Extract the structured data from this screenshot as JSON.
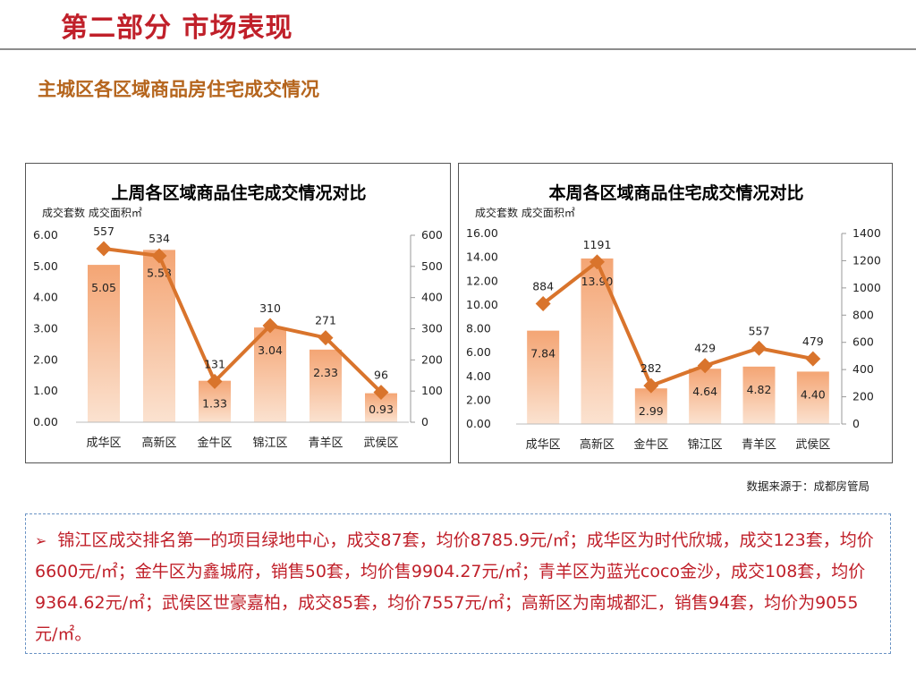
{
  "header": {
    "title": "第二部分 市场表现"
  },
  "subtitle": "主城区各区域商品房住宅成交情况",
  "source_note": "数据来源于：成都房管局",
  "summary": {
    "bullet": "➢",
    "text": "锦江区成交排名第一的项目绿地中心，成交87套，均价8785.9元/㎡；成华区为时代欣城，成交123套，均价6600元/㎡；金牛区为鑫城府，销售50套，均价售9904.27元/㎡；青羊区为蓝光coco金沙，成交108套，均价9364.62元/㎡；武侯区世豪嘉柏，成交85套，均价7557元/㎡；高新区为南城都汇，销售94套，均价为9055元/㎡。"
  },
  "colors": {
    "bar_fill_top": "#f4a574",
    "bar_fill_bottom": "#fbe2d0",
    "line": "#d9742c",
    "title_red": "#c0202a",
    "subtitle_brown": "#b5651d"
  },
  "chart_data": [
    {
      "type": "bar+line",
      "title": "上周各区域商品住宅成交情况对比",
      "legend_text": "成交套数 成交面积㎡",
      "categories": [
        "成华区",
        "高新区",
        "金牛区",
        "锦江区",
        "青羊区",
        "武侯区"
      ],
      "bar_series": {
        "values": [
          5.05,
          5.53,
          1.33,
          3.04,
          2.33,
          0.93
        ],
        "labels": [
          "5.05",
          "5.53",
          "1.33",
          "3.04",
          "2.33",
          "0.93"
        ]
      },
      "line_series": {
        "values": [
          557,
          534,
          131,
          310,
          271,
          96
        ],
        "labels": [
          "557",
          "534",
          "131",
          "310",
          "271",
          "96"
        ]
      },
      "left_axis": {
        "min": 0,
        "max": 6,
        "ticks": [
          "0.00",
          "1.00",
          "2.00",
          "3.00",
          "4.00",
          "5.00",
          "6.00"
        ]
      },
      "right_axis": {
        "min": 0,
        "max": 600,
        "ticks": [
          "0",
          "100",
          "200",
          "300",
          "400",
          "500",
          "600"
        ]
      }
    },
    {
      "type": "bar+line",
      "title": "本周各区域商品住宅成交情况对比",
      "legend_text": "成交套数 成交面积㎡",
      "categories": [
        "成华区",
        "高新区",
        "金牛区",
        "锦江区",
        "青羊区",
        "武侯区"
      ],
      "bar_series": {
        "values": [
          7.84,
          13.9,
          2.99,
          4.64,
          4.82,
          4.4
        ],
        "labels": [
          "7.84",
          "13.90",
          "2.99",
          "4.64",
          "4.82",
          "4.40"
        ]
      },
      "line_series": {
        "values": [
          884,
          1191,
          282,
          429,
          557,
          479
        ],
        "labels": [
          "884",
          "1191",
          "282",
          "429",
          "557",
          "479"
        ]
      },
      "left_axis": {
        "min": 0,
        "max": 16,
        "ticks": [
          "0.00",
          "2.00",
          "4.00",
          "6.00",
          "8.00",
          "10.00",
          "12.00",
          "14.00",
          "16.00"
        ]
      },
      "right_axis": {
        "min": 0,
        "max": 1400,
        "ticks": [
          "0",
          "200",
          "400",
          "600",
          "800",
          "1000",
          "1200",
          "1400"
        ]
      }
    }
  ]
}
